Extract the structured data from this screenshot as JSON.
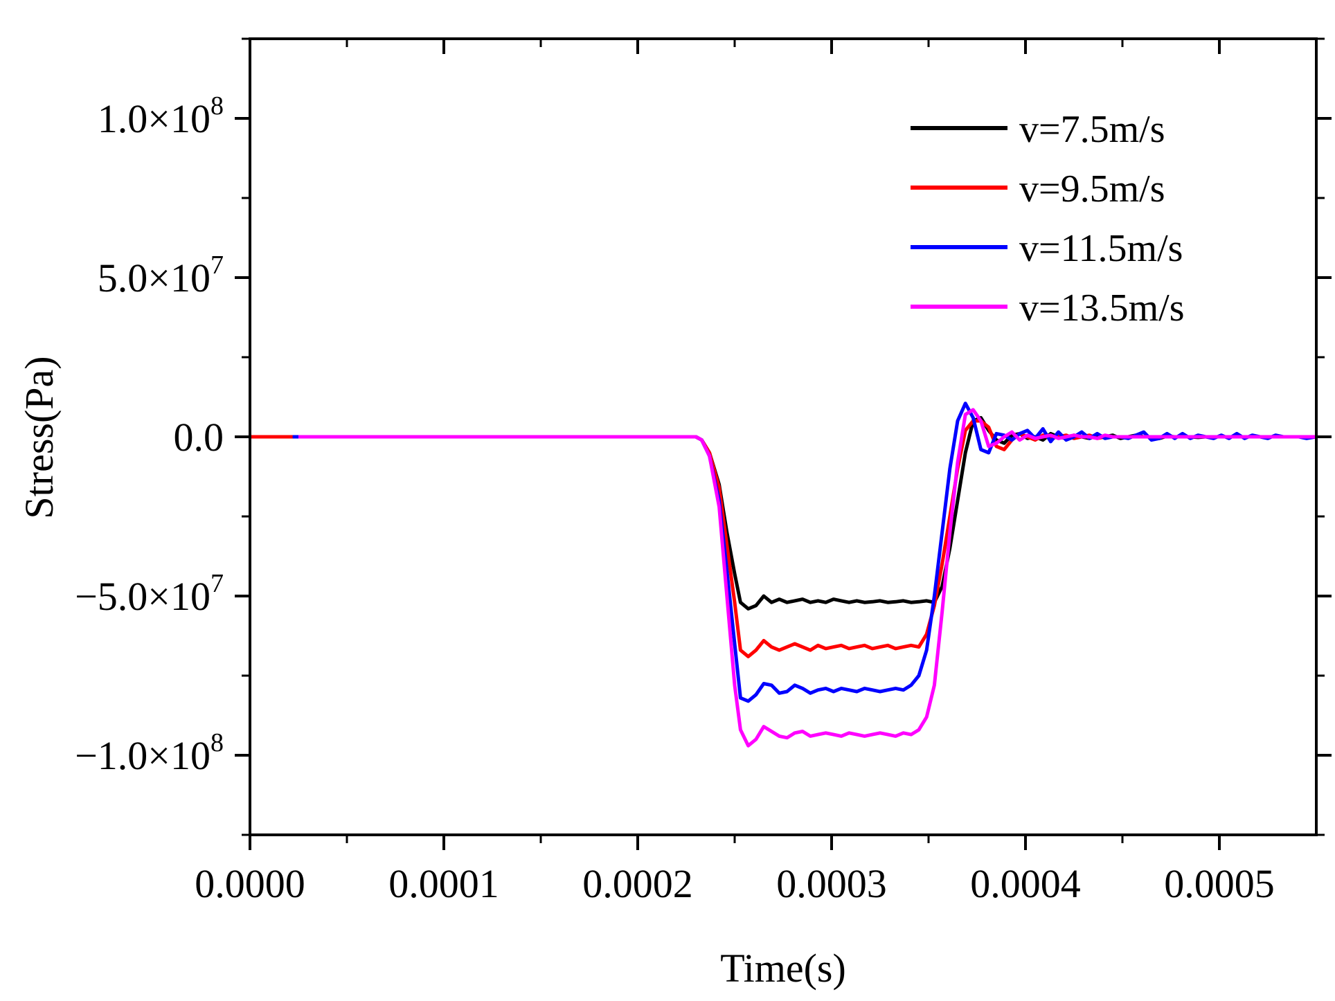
{
  "chart_data": {
    "type": "line",
    "title": "",
    "xlabel": "Time(s)",
    "ylabel": "Stress(Pa)",
    "xlim": [
      0,
      0.00055
    ],
    "ylim": [
      -125000000,
      125000000
    ],
    "grid": false,
    "legend_position": "top-right",
    "x_ticks": [
      {
        "value": 0.0,
        "label": "0.0000"
      },
      {
        "value": 0.0001,
        "label": "0.0001"
      },
      {
        "value": 0.0002,
        "label": "0.0002"
      },
      {
        "value": 0.0003,
        "label": "0.0003"
      },
      {
        "value": 0.0004,
        "label": "0.0004"
      },
      {
        "value": 0.0005,
        "label": "0.0005"
      }
    ],
    "y_ticks": [
      {
        "value": 100000000,
        "mantissa": "1.0×10",
        "exponent": "8"
      },
      {
        "value": 50000000,
        "mantissa": "5.0×10",
        "exponent": "7"
      },
      {
        "value": 0,
        "mantissa": "0.0",
        "exponent": ""
      },
      {
        "value": -50000000,
        "mantissa": "−5.0×10",
        "exponent": "7"
      },
      {
        "value": -100000000,
        "mantissa": "−1.0×10",
        "exponent": "8"
      }
    ],
    "series": [
      {
        "name": "v=7.5m/s",
        "color": "#000000",
        "x": [
          2e-05,
          0.0002,
          0.00023,
          0.000233,
          0.000237,
          0.000242,
          0.000246,
          0.00025,
          0.000253,
          0.000257,
          0.000261,
          0.000265,
          0.000269,
          0.000273,
          0.000277,
          0.000281,
          0.000285,
          0.000289,
          0.000293,
          0.000297,
          0.000301,
          0.000305,
          0.000309,
          0.000313,
          0.000317,
          0.000321,
          0.000325,
          0.000329,
          0.000333,
          0.000337,
          0.000341,
          0.000345,
          0.000349,
          0.000353,
          0.000357,
          0.000361,
          0.000365,
          0.000369,
          0.000373,
          0.000377,
          0.000381,
          0.000385,
          0.000389,
          0.000393,
          0.000397,
          0.000401,
          0.000405,
          0.000409,
          0.000413,
          0.000417,
          0.000421,
          0.000425,
          0.000429,
          0.000433,
          0.000437,
          0.000441,
          0.000445,
          0.000449,
          0.000453,
          0.000457,
          0.000461,
          0.000465,
          0.000469,
          0.000473,
          0.000477,
          0.000481,
          0.000485,
          0.000489,
          0.000493,
          0.000497,
          0.000501,
          0.000505,
          0.000509,
          0.000513,
          0.000517,
          0.000521,
          0.000525,
          0.000529,
          0.000533,
          0.000537,
          0.000541,
          0.000545,
          0.00055
        ],
        "y": [
          0,
          0,
          0,
          -1000000,
          -5000000,
          -15000000,
          -30000000,
          -43000000,
          -52000000,
          -54000000,
          -53000000,
          -50000000,
          -52000000,
          -51000000,
          -52000000,
          -51500000,
          -51000000,
          -52000000,
          -51500000,
          -52000000,
          -51000000,
          -51500000,
          -52000000,
          -51500000,
          -52000000,
          -51800000,
          -51500000,
          -52000000,
          -51800000,
          -51500000,
          -52000000,
          -51800000,
          -51500000,
          -52000000,
          -47000000,
          -35000000,
          -20000000,
          -5000000,
          5000000,
          6000000,
          2000000,
          -1000000,
          -2000000,
          500000,
          1000000,
          -500000,
          0,
          -1000000,
          1000000,
          0,
          -500000,
          500000,
          0,
          -500000,
          500000,
          0,
          500000,
          -500000,
          0,
          500000,
          0,
          0,
          -500000,
          200000,
          0,
          0,
          0,
          -200000,
          0,
          0,
          0,
          0,
          0,
          0,
          0,
          0,
          0,
          0,
          0,
          0,
          0,
          0,
          0
        ]
      },
      {
        "name": "v=9.5m/s",
        "color": "#ff0000",
        "x": [
          0.0,
          0.0002,
          0.00023,
          0.000233,
          0.000237,
          0.000242,
          0.000246,
          0.00025,
          0.000253,
          0.000257,
          0.000261,
          0.000265,
          0.000269,
          0.000273,
          0.000277,
          0.000281,
          0.000285,
          0.000289,
          0.000293,
          0.000297,
          0.000301,
          0.000305,
          0.000309,
          0.000313,
          0.000317,
          0.000321,
          0.000325,
          0.000329,
          0.000333,
          0.000337,
          0.000341,
          0.000345,
          0.000349,
          0.000353,
          0.000357,
          0.000361,
          0.000365,
          0.000369,
          0.000373,
          0.000377,
          0.000381,
          0.000385,
          0.000389,
          0.000393,
          0.000397,
          0.000401,
          0.000405,
          0.000409,
          0.000413,
          0.000417,
          0.000421,
          0.000425,
          0.000429,
          0.000433,
          0.000437,
          0.000441,
          0.000445,
          0.000449,
          0.000453,
          0.000457,
          0.000461,
          0.000465,
          0.000469,
          0.000473,
          0.000477,
          0.000481,
          0.000485,
          0.000489,
          0.000493,
          0.000497,
          0.000501,
          0.000505,
          0.000509,
          0.000513,
          0.000517,
          0.000521,
          0.000525,
          0.000529,
          0.000533,
          0.000537,
          0.000541,
          0.000545,
          0.00055
        ],
        "y": [
          0,
          0,
          0,
          -1000000,
          -5000000,
          -16000000,
          -34000000,
          -52000000,
          -67000000,
          -69000000,
          -67000000,
          -64000000,
          -66000000,
          -67000000,
          -66000000,
          -65000000,
          -66000000,
          -67000000,
          -65500000,
          -66500000,
          -66000000,
          -65500000,
          -66500000,
          -66000000,
          -65500000,
          -66500000,
          -66000000,
          -65500000,
          -66500000,
          -66000000,
          -65500000,
          -66000000,
          -62000000,
          -53000000,
          -40000000,
          -25000000,
          -10000000,
          2000000,
          5000000,
          5000000,
          3000000,
          -3000000,
          -4000000,
          -1000000,
          1000000,
          0,
          -1000000,
          500000,
          -500000,
          0,
          500000,
          -500000,
          0,
          500000,
          -500000,
          0,
          0,
          0,
          0,
          0,
          0,
          0,
          0,
          0,
          0,
          0,
          0,
          0,
          0,
          0,
          0,
          0,
          0,
          0,
          0,
          0,
          0,
          0,
          0,
          0,
          0,
          0,
          0
        ]
      },
      {
        "name": "v=11.5m/s",
        "color": "#0000ff",
        "x": [
          2.2e-05,
          0.0002,
          0.00023,
          0.000233,
          0.000237,
          0.000242,
          0.000246,
          0.00025,
          0.000253,
          0.000257,
          0.000261,
          0.000265,
          0.000269,
          0.000273,
          0.000277,
          0.000281,
          0.000285,
          0.000289,
          0.000293,
          0.000297,
          0.000301,
          0.000305,
          0.000309,
          0.000313,
          0.000317,
          0.000321,
          0.000325,
          0.000329,
          0.000333,
          0.000337,
          0.000341,
          0.000345,
          0.000349,
          0.000353,
          0.000357,
          0.000361,
          0.000365,
          0.000369,
          0.000373,
          0.000377,
          0.000381,
          0.000385,
          0.000389,
          0.000393,
          0.000397,
          0.000401,
          0.000405,
          0.000409,
          0.000413,
          0.000417,
          0.000421,
          0.000425,
          0.000429,
          0.000433,
          0.000437,
          0.000441,
          0.000445,
          0.000449,
          0.000453,
          0.000457,
          0.000461,
          0.000465,
          0.000469,
          0.000473,
          0.000477,
          0.000481,
          0.000485,
          0.000489,
          0.000493,
          0.000497,
          0.000501,
          0.000505,
          0.000509,
          0.000513,
          0.000517,
          0.000521,
          0.000525,
          0.000529,
          0.000533,
          0.000537,
          0.000541,
          0.000545,
          0.00055
        ],
        "y": [
          0,
          0,
          0,
          -1000000,
          -6000000,
          -20000000,
          -42000000,
          -65000000,
          -82000000,
          -83000000,
          -81000000,
          -77500000,
          -78000000,
          -80500000,
          -80000000,
          -78000000,
          -79000000,
          -80500000,
          -79500000,
          -79000000,
          -80000000,
          -79000000,
          -79500000,
          -80000000,
          -79000000,
          -79500000,
          -80000000,
          -79500000,
          -79000000,
          -79500000,
          -78000000,
          -75000000,
          -67000000,
          -50000000,
          -30000000,
          -10000000,
          5000000,
          10500000,
          6000000,
          -4000000,
          -5000000,
          1000000,
          500000,
          -1000000,
          1000000,
          2000000,
          -500000,
          2500000,
          -1500000,
          1500000,
          -1000000,
          0,
          1500000,
          -500000,
          1000000,
          -500000,
          0,
          0,
          -500000,
          500000,
          1500000,
          -1000000,
          -500000,
          1000000,
          -500000,
          1000000,
          -500000,
          500000,
          0,
          -500000,
          500000,
          -500000,
          1000000,
          -500000,
          500000,
          0,
          -500000,
          500000,
          0,
          0,
          0,
          -500000,
          0
        ]
      },
      {
        "name": "v=13.5m/s",
        "color": "#ff00ff",
        "x": [
          2.5e-05,
          0.0002,
          0.00023,
          0.000233,
          0.000237,
          0.000242,
          0.000246,
          0.00025,
          0.000253,
          0.000257,
          0.000261,
          0.000265,
          0.000269,
          0.000273,
          0.000277,
          0.000281,
          0.000285,
          0.000289,
          0.000293,
          0.000297,
          0.000301,
          0.000305,
          0.000309,
          0.000313,
          0.000317,
          0.000321,
          0.000325,
          0.000329,
          0.000333,
          0.000337,
          0.000341,
          0.000345,
          0.000349,
          0.000353,
          0.000357,
          0.000361,
          0.000365,
          0.000369,
          0.000373,
          0.000377,
          0.000381,
          0.000385,
          0.000389,
          0.000393,
          0.000397,
          0.000401,
          0.000405,
          0.000409,
          0.000413,
          0.000417,
          0.000421,
          0.000425,
          0.000429,
          0.000433,
          0.000437,
          0.000441,
          0.000445,
          0.000449,
          0.000453,
          0.000457,
          0.000461,
          0.000465,
          0.000469,
          0.000473,
          0.000477,
          0.000481,
          0.000485,
          0.000489,
          0.000493,
          0.000497,
          0.000501,
          0.000505,
          0.000509,
          0.000513,
          0.000517,
          0.000521,
          0.000525,
          0.000529,
          0.000533,
          0.000537,
          0.000541,
          0.000545,
          0.00055
        ],
        "y": [
          0,
          0,
          0,
          -1000000,
          -6000000,
          -22000000,
          -50000000,
          -78000000,
          -92000000,
          -97000000,
          -95000000,
          -91000000,
          -92500000,
          -94000000,
          -94500000,
          -93000000,
          -92500000,
          -94000000,
          -93500000,
          -93000000,
          -93500000,
          -94000000,
          -93000000,
          -93500000,
          -94000000,
          -93500000,
          -93000000,
          -93500000,
          -94000000,
          -93000000,
          -93500000,
          -92000000,
          -88000000,
          -78000000,
          -55000000,
          -30000000,
          -8000000,
          7000000,
          8500000,
          5000000,
          -3000000,
          -2000000,
          0,
          1500000,
          -1000000,
          500000,
          -500000,
          0,
          500000,
          -500000,
          0,
          500000,
          0,
          0,
          -500000,
          500000,
          0,
          0,
          0,
          0,
          0,
          0,
          0,
          0,
          0,
          0,
          0,
          0,
          0,
          0,
          0,
          0,
          0,
          0,
          0,
          0,
          0,
          0,
          0,
          0,
          0,
          0,
          0
        ]
      }
    ]
  }
}
